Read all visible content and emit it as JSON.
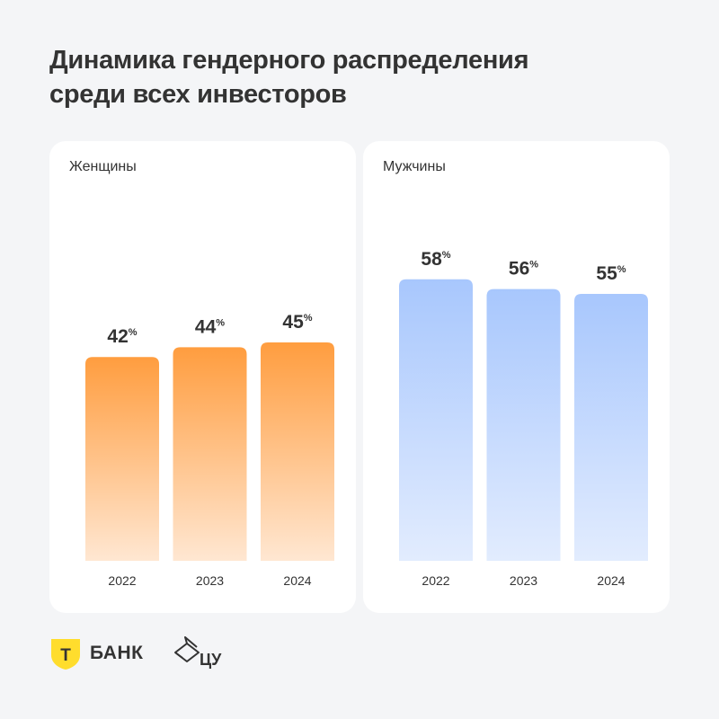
{
  "title_lines": [
    "Динамика гендерного распределения",
    "среди всех инвесторов"
  ],
  "chart_data": [
    {
      "type": "bar",
      "title": "Женщины",
      "categories": [
        "2022",
        "2023",
        "2024"
      ],
      "values": [
        42,
        44,
        45
      ],
      "value_suffix": "%",
      "ylim": [
        0,
        75
      ],
      "color_top": "#ff9d3f",
      "color_bottom": "#ffe7d2",
      "grid": false
    },
    {
      "type": "bar",
      "title": "Мужчины",
      "categories": [
        "2022",
        "2023",
        "2024"
      ],
      "values": [
        58,
        56,
        55
      ],
      "value_suffix": "%",
      "ylim": [
        0,
        75
      ],
      "color_top": "#a8c7fd",
      "color_bottom": "#e2ecfe",
      "grid": false
    }
  ],
  "logos": {
    "tbank": {
      "mark": "Т",
      "text": "БАНК",
      "color": "#ffdd2d"
    },
    "cu": {
      "text": "ЦУ"
    }
  }
}
